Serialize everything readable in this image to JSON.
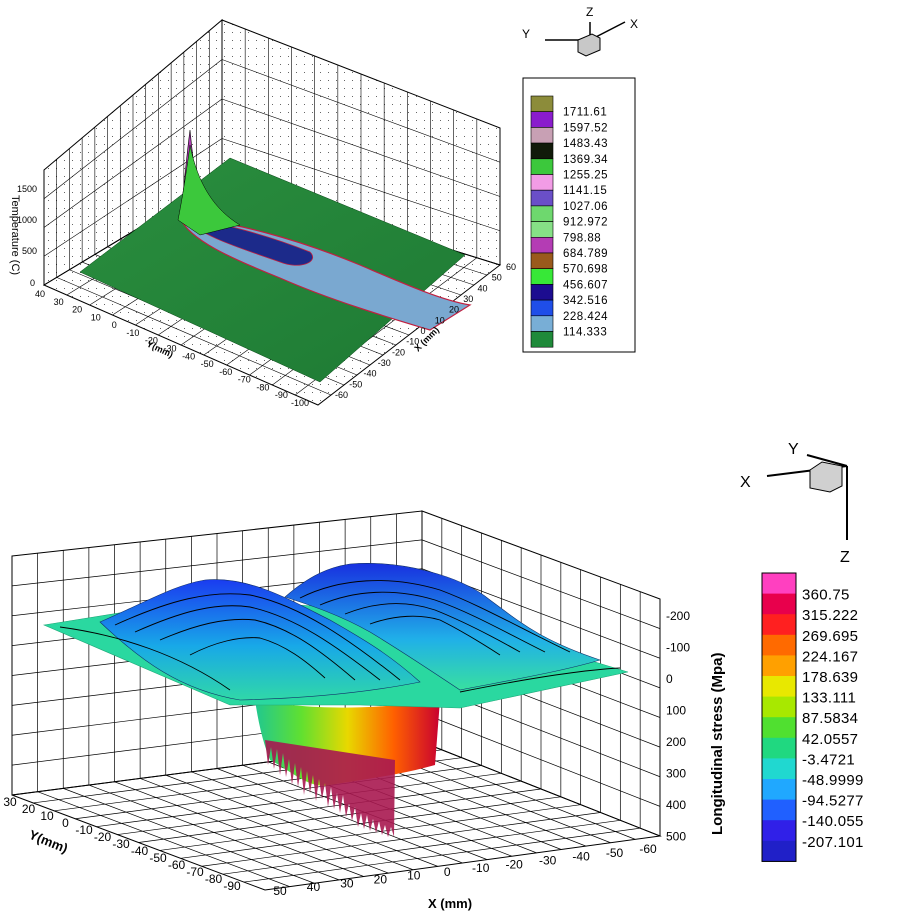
{
  "chart_data": [
    {
      "type": "surface",
      "z_label": "Temperature (C)",
      "x_label": "X (mm)",
      "y_label": "Y(mm)",
      "x_ticks": [
        "60",
        "50",
        "40",
        "30",
        "20",
        "10",
        "0",
        "-10",
        "-20",
        "-30",
        "-40",
        "-50",
        "-60"
      ],
      "y_ticks": [
        "40",
        "30",
        "20",
        "10",
        "0",
        "-10",
        "-20",
        "-30",
        "-40",
        "-50",
        "-60",
        "-70",
        "-80",
        "-90",
        "-100"
      ],
      "z_ticks": [
        "0",
        "500",
        "1000",
        "1500"
      ],
      "triad_labels": {
        "x": "X",
        "y": "Y",
        "z": "Z"
      },
      "legend": {
        "levels": [
          "1711.61",
          "1597.52",
          "1483.43",
          "1369.34",
          "1255.25",
          "1141.15",
          "1027.06",
          "912.972",
          "798.88",
          "684.789",
          "570.698",
          "456.607",
          "342.516",
          "228.424",
          "114.333"
        ],
        "colors": [
          "#8c8c3a",
          "#8a1ccc",
          "#c8a0b4",
          "#111a0a",
          "#3cc83c",
          "#f29ce6",
          "#6a4fc8",
          "#6ed86e",
          "#86e086",
          "#b43cb4",
          "#9a5a1c",
          "#37e837",
          "#1c0c90",
          "#1f4ee8",
          "#78aed6",
          "#1f8a3a"
        ]
      }
    },
    {
      "type": "surface",
      "z_label": "Longitudinal stress (Mpa)",
      "x_label": "X (mm)",
      "y_label": "Y(mm)",
      "x_ticks": [
        "50",
        "40",
        "30",
        "20",
        "10",
        "0",
        "-10",
        "-20",
        "-30",
        "-40",
        "-50",
        "-60"
      ],
      "y_ticks": [
        "30",
        "20",
        "10",
        "0",
        "-10",
        "-20",
        "-30",
        "-40",
        "-50",
        "-60",
        "-70",
        "-80",
        "-90"
      ],
      "z_ticks": [
        "-200",
        "-100",
        "0",
        "100",
        "200",
        "300",
        "400",
        "500"
      ],
      "triad_labels": {
        "x": "X",
        "y": "Y",
        "z": "Z"
      },
      "legend": {
        "levels": [
          "360.75",
          "315.222",
          "269.695",
          "224.167",
          "178.639",
          "133.111",
          "87.5834",
          "42.0557",
          "-3.4721",
          "-48.9999",
          "-94.5277",
          "-140.055",
          "-207.101"
        ],
        "colors": [
          "#ff40c0",
          "#e8004c",
          "#ff2020",
          "#ff6a00",
          "#ffa000",
          "#e8e800",
          "#a8e800",
          "#50e030",
          "#20d880",
          "#20d8d0",
          "#20a8ff",
          "#2060ff",
          "#3020e8",
          "#2020c8"
        ]
      }
    }
  ]
}
